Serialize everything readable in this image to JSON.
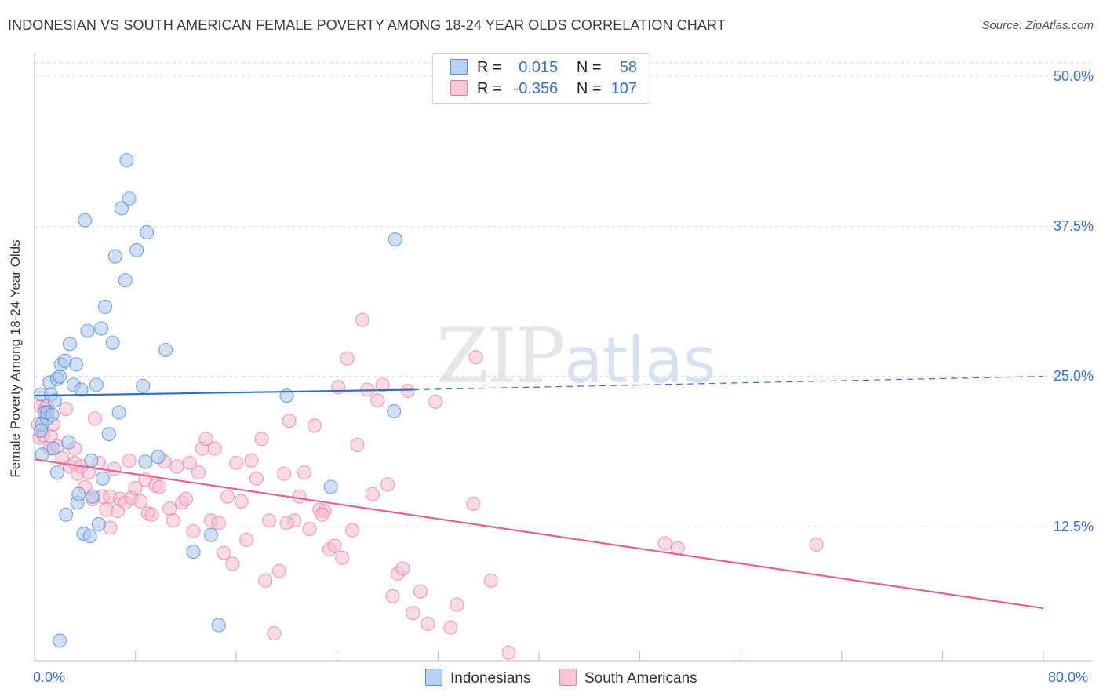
{
  "title": "INDONESIAN VS SOUTH AMERICAN FEMALE POVERTY AMONG 18-24 YEAR OLDS CORRELATION CHART",
  "source": "Source: ZipAtlas.com",
  "watermark": {
    "zip": "ZIP",
    "atlas": "atlas"
  },
  "legend": {
    "r_label": "R =",
    "n_label": "N =",
    "rows": [
      {
        "r": "0.015",
        "n": "58"
      },
      {
        "r": "-0.356",
        "n": "107"
      }
    ]
  },
  "bottom_legend": [
    "Indonesians",
    "South Americans"
  ],
  "colors": {
    "indonesians_fill": "#a8c6ee",
    "indonesians_stroke": "#4f86cf",
    "indonesians_line": "#2f6fc7",
    "south_americans_fill": "#f5bccd",
    "south_americans_stroke": "#e67fa0",
    "south_americans_line": "#e0658f"
  },
  "chart_data": {
    "type": "scatter",
    "title": "INDONESIAN VS SOUTH AMERICAN FEMALE POVERTY AMONG 18-24 YEAR OLDS CORRELATION CHART",
    "xlabel": "",
    "ylabel": "Female Poverty Among 18-24 Year Olds",
    "xlim": [
      0,
      80
    ],
    "ylim": [
      0,
      52
    ],
    "x_tick_labels": [
      "0.0%",
      "80.0%"
    ],
    "y_ticks": [
      12.5,
      25.0,
      37.5,
      50.0
    ],
    "y_tick_labels": [
      "12.5%",
      "25.0%",
      "37.5%",
      "50.0%"
    ],
    "grid": true,
    "legend_position": "top-center",
    "series": [
      {
        "name": "Indonesians",
        "r": 0.015,
        "n": 58,
        "trend": {
          "x": [
            0,
            30
          ],
          "y": [
            23.4,
            23.9
          ],
          "dashed_extension_to_x": 80,
          "dashed_end_y": 25.0
        },
        "points": [
          [
            0.5,
            23.5
          ],
          [
            0.6,
            21.0
          ],
          [
            0.5,
            20.5
          ],
          [
            0.6,
            18.5
          ],
          [
            0.8,
            22.0
          ],
          [
            1.0,
            21.5
          ],
          [
            1.0,
            22.0
          ],
          [
            1.2,
            24.5
          ],
          [
            1.3,
            23.5
          ],
          [
            1.4,
            21.8
          ],
          [
            1.5,
            19.0
          ],
          [
            1.6,
            23.0
          ],
          [
            1.8,
            17.0
          ],
          [
            1.8,
            24.8
          ],
          [
            2.0,
            25.0
          ],
          [
            2.1,
            26.0
          ],
          [
            2.4,
            26.3
          ],
          [
            2.5,
            13.5
          ],
          [
            2.7,
            19.5
          ],
          [
            2.8,
            27.7
          ],
          [
            3.1,
            24.3
          ],
          [
            3.3,
            26.0
          ],
          [
            3.4,
            14.5
          ],
          [
            3.5,
            15.2
          ],
          [
            3.7,
            23.9
          ],
          [
            3.9,
            11.9
          ],
          [
            4.0,
            38.0
          ],
          [
            4.2,
            28.8
          ],
          [
            4.4,
            11.7
          ],
          [
            4.5,
            18.0
          ],
          [
            4.6,
            15.0
          ],
          [
            4.9,
            24.3
          ],
          [
            5.1,
            12.7
          ],
          [
            5.3,
            29.0
          ],
          [
            5.4,
            16.5
          ],
          [
            5.6,
            30.8
          ],
          [
            5.9,
            20.2
          ],
          [
            6.2,
            27.8
          ],
          [
            6.4,
            35.0
          ],
          [
            6.7,
            22.0
          ],
          [
            6.9,
            39.0
          ],
          [
            7.2,
            33.0
          ],
          [
            7.3,
            43.0
          ],
          [
            7.5,
            39.8
          ],
          [
            8.1,
            35.5
          ],
          [
            8.6,
            24.2
          ],
          [
            8.8,
            17.9
          ],
          [
            8.9,
            37.0
          ],
          [
            9.8,
            18.3
          ],
          [
            10.4,
            27.2
          ],
          [
            12.6,
            10.4
          ],
          [
            14.0,
            11.8
          ],
          [
            14.6,
            4.3
          ],
          [
            20.0,
            23.4
          ],
          [
            23.5,
            15.8
          ],
          [
            28.5,
            22.1
          ],
          [
            28.6,
            36.4
          ],
          [
            2.0,
            3.0
          ]
        ]
      },
      {
        "name": "South Americans",
        "r": -0.356,
        "n": 107,
        "trend": {
          "x": [
            0,
            80
          ],
          "y": [
            18.1,
            5.7
          ]
        },
        "points": [
          [
            0.3,
            21.0
          ],
          [
            0.4,
            19.9
          ],
          [
            0.5,
            22.5
          ],
          [
            0.7,
            20.1
          ],
          [
            0.8,
            22.3
          ],
          [
            1.0,
            22.5
          ],
          [
            1.2,
            19.0
          ],
          [
            1.3,
            20.0
          ],
          [
            1.5,
            21.0
          ],
          [
            1.8,
            19.2
          ],
          [
            2.2,
            18.2
          ],
          [
            2.5,
            22.3
          ],
          [
            2.8,
            17.5
          ],
          [
            3.2,
            17.8
          ],
          [
            3.4,
            16.9
          ],
          [
            3.7,
            17.5
          ],
          [
            4.0,
            15.8
          ],
          [
            4.3,
            17.0
          ],
          [
            4.6,
            14.8
          ],
          [
            4.8,
            21.5
          ],
          [
            5.1,
            17.8
          ],
          [
            5.4,
            15.0
          ],
          [
            5.7,
            13.9
          ],
          [
            6.0,
            15.0
          ],
          [
            6.3,
            17.3
          ],
          [
            6.6,
            13.8
          ],
          [
            6.8,
            14.8
          ],
          [
            7.2,
            14.5
          ],
          [
            7.5,
            18.0
          ],
          [
            7.7,
            14.9
          ],
          [
            8.0,
            15.7
          ],
          [
            8.4,
            14.6
          ],
          [
            8.8,
            16.4
          ],
          [
            9.0,
            13.6
          ],
          [
            9.3,
            13.5
          ],
          [
            9.6,
            15.9
          ],
          [
            9.9,
            15.8
          ],
          [
            10.3,
            17.9
          ],
          [
            10.7,
            14.0
          ],
          [
            11.0,
            13.0
          ],
          [
            11.3,
            17.5
          ],
          [
            11.7,
            14.5
          ],
          [
            12.0,
            14.8
          ],
          [
            12.3,
            17.8
          ],
          [
            12.6,
            12.1
          ],
          [
            13.0,
            17.0
          ],
          [
            13.3,
            19.0
          ],
          [
            13.6,
            19.8
          ],
          [
            14.0,
            13.0
          ],
          [
            14.3,
            19.0
          ],
          [
            14.6,
            12.8
          ],
          [
            15.0,
            10.3
          ],
          [
            15.3,
            15.0
          ],
          [
            15.7,
            9.4
          ],
          [
            16.0,
            17.8
          ],
          [
            16.4,
            14.6
          ],
          [
            16.8,
            11.4
          ],
          [
            17.2,
            18.0
          ],
          [
            17.6,
            16.5
          ],
          [
            18.0,
            19.8
          ],
          [
            18.3,
            8.0
          ],
          [
            18.6,
            13.0
          ],
          [
            19.0,
            3.6
          ],
          [
            19.4,
            8.8
          ],
          [
            19.8,
            16.9
          ],
          [
            20.2,
            21.3
          ],
          [
            20.6,
            13.0
          ],
          [
            21.0,
            15.0
          ],
          [
            21.4,
            17.0
          ],
          [
            21.8,
            12.3
          ],
          [
            22.2,
            20.9
          ],
          [
            22.6,
            13.9
          ],
          [
            23.0,
            13.8
          ],
          [
            23.4,
            10.6
          ],
          [
            23.8,
            10.9
          ],
          [
            24.1,
            24.1
          ],
          [
            24.4,
            9.9
          ],
          [
            24.8,
            26.5
          ],
          [
            25.2,
            12.2
          ],
          [
            25.6,
            19.3
          ],
          [
            26.0,
            29.7
          ],
          [
            26.4,
            23.9
          ],
          [
            26.8,
            15.2
          ],
          [
            27.2,
            23.0
          ],
          [
            27.6,
            24.3
          ],
          [
            28.0,
            16.0
          ],
          [
            28.4,
            6.7
          ],
          [
            28.8,
            8.6
          ],
          [
            29.2,
            9.0
          ],
          [
            29.6,
            23.8
          ],
          [
            30.0,
            5.3
          ],
          [
            30.6,
            7.1
          ],
          [
            31.2,
            4.4
          ],
          [
            31.8,
            22.9
          ],
          [
            33.0,
            4.1
          ],
          [
            33.5,
            6.0
          ],
          [
            34.8,
            14.4
          ],
          [
            35.0,
            26.6
          ],
          [
            36.2,
            8.0
          ],
          [
            37.6,
            2.0
          ],
          [
            50.0,
            11.1
          ],
          [
            51.0,
            10.7
          ],
          [
            62.0,
            11.0
          ],
          [
            3.2,
            19.0
          ],
          [
            6.0,
            12.4
          ],
          [
            20.0,
            12.8
          ],
          [
            22.8,
            13.5
          ]
        ]
      }
    ]
  }
}
